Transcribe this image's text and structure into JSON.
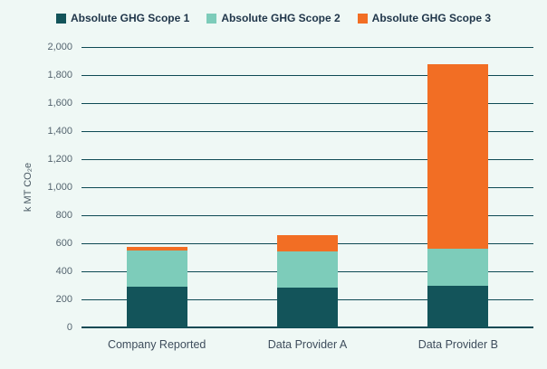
{
  "chart_data": {
    "type": "bar",
    "stacked": true,
    "title": "",
    "xlabel": "",
    "ylabel": "k MT CO₂e",
    "ylim": [
      0,
      2000
    ],
    "ytick_step": 200,
    "ytick_labels": [
      "0",
      "200",
      "400",
      "600",
      "800",
      "1,000",
      "1,200",
      "1,400",
      "1,600",
      "1,800",
      "2,000"
    ],
    "grid": true,
    "legend_position": "top",
    "categories": [
      "Company Reported",
      "Data Provider A",
      "Data Provider B"
    ],
    "series": [
      {
        "name": "Absolute GHG Scope 1",
        "color": "#13545A",
        "values": [
          290,
          285,
          295
        ]
      },
      {
        "name": "Absolute GHG Scope 2",
        "color": "#7DCCBA",
        "values": [
          260,
          260,
          265
        ]
      },
      {
        "name": "Absolute GHG Scope 3",
        "color": "#F26E24",
        "values": [
          25,
          115,
          1315
        ]
      }
    ],
    "colors": {
      "background": "#EFF8F5",
      "gridline": "#0E4A54",
      "tick_label": "#54646F",
      "category_label": "#3E4D5C",
      "legend_text": "#20364A"
    }
  }
}
